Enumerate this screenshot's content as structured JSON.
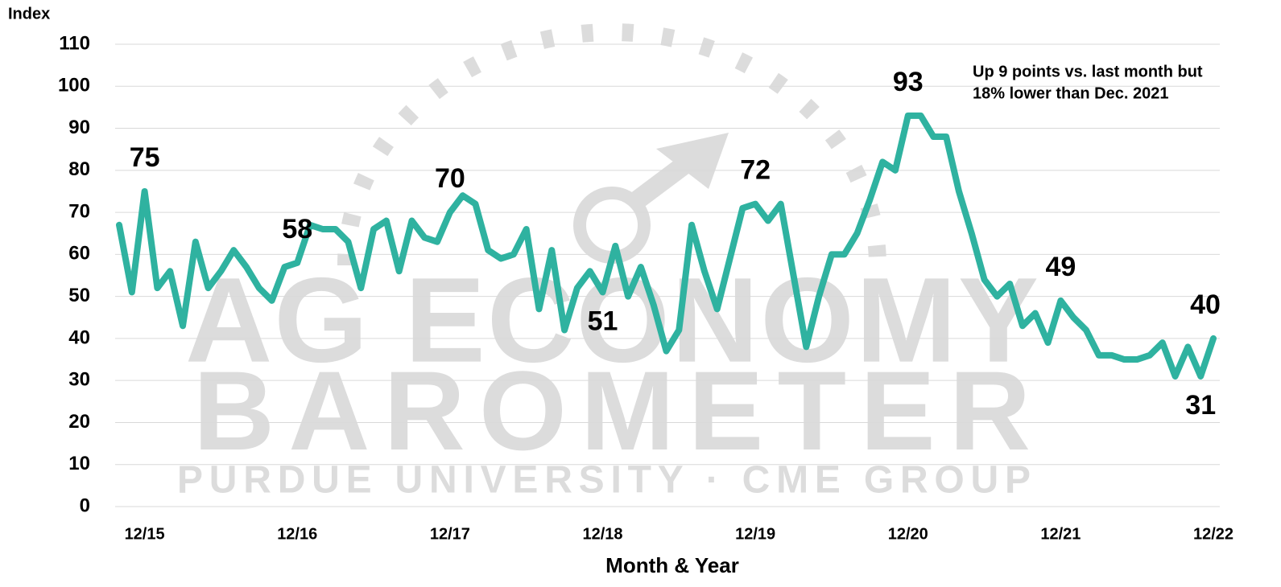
{
  "chart_data": {
    "type": "line",
    "y_axis_label": "Index",
    "x_axis_label": "Month & Year",
    "annotation": [
      "Up 9 points vs. last month but",
      "18% lower than Dec. 2021"
    ],
    "watermark": [
      "AG ECONOMY",
      "BAROMETER",
      "PURDUE UNIVERSITY · CME GROUP"
    ],
    "categories": [
      null,
      null,
      "12/15",
      null,
      null,
      null,
      null,
      null,
      null,
      null,
      null,
      null,
      null,
      null,
      "12/16",
      null,
      null,
      null,
      null,
      null,
      null,
      null,
      null,
      null,
      null,
      null,
      "12/17",
      null,
      null,
      null,
      null,
      null,
      null,
      null,
      null,
      null,
      null,
      null,
      "12/18",
      null,
      null,
      null,
      null,
      null,
      null,
      null,
      null,
      null,
      null,
      null,
      "12/19",
      null,
      null,
      null,
      null,
      null,
      null,
      null,
      null,
      null,
      null,
      null,
      "12/20",
      null,
      null,
      null,
      null,
      null,
      null,
      null,
      null,
      null,
      null,
      null,
      "12/21",
      null,
      null,
      null,
      null,
      null,
      null,
      null,
      null,
      null,
      null,
      null,
      "12/22"
    ],
    "series": [
      {
        "color": "#2fb2a0",
        "values": [
          67,
          51,
          75,
          52,
          56,
          43,
          63,
          52,
          56,
          61,
          57,
          52,
          49,
          57,
          58,
          67,
          66,
          66,
          63,
          52,
          66,
          68,
          56,
          68,
          64,
          63,
          70,
          74,
          72,
          61,
          59,
          60,
          66,
          47,
          61,
          42,
          52,
          56,
          51,
          62,
          50,
          57,
          48,
          37,
          42,
          67,
          56,
          47,
          59,
          71,
          72,
          68,
          72,
          55,
          38,
          50,
          60,
          60,
          65,
          73,
          82,
          80,
          93,
          93,
          88,
          88,
          75,
          65,
          54,
          50,
          53,
          43,
          46,
          39,
          49,
          45,
          42,
          36,
          36,
          35,
          35,
          36,
          39,
          31,
          38,
          31,
          40
        ],
        "value_labels": [
          null,
          null,
          75,
          null,
          null,
          null,
          null,
          null,
          null,
          null,
          null,
          null,
          null,
          null,
          58,
          null,
          null,
          null,
          null,
          null,
          null,
          null,
          null,
          null,
          null,
          null,
          70,
          null,
          null,
          null,
          null,
          null,
          null,
          null,
          null,
          null,
          null,
          null,
          51,
          null,
          null,
          null,
          null,
          null,
          null,
          null,
          null,
          null,
          null,
          null,
          72,
          null,
          null,
          null,
          null,
          null,
          null,
          null,
          null,
          null,
          null,
          null,
          93,
          null,
          null,
          null,
          null,
          null,
          null,
          null,
          null,
          null,
          null,
          null,
          49,
          null,
          null,
          null,
          null,
          null,
          null,
          null,
          null,
          null,
          null,
          31,
          40
        ]
      }
    ],
    "ylim": [
      0,
      110
    ],
    "yticks": [
      0,
      10,
      20,
      30,
      40,
      50,
      60,
      70,
      80,
      90,
      100,
      110
    ],
    "grid": true
  }
}
